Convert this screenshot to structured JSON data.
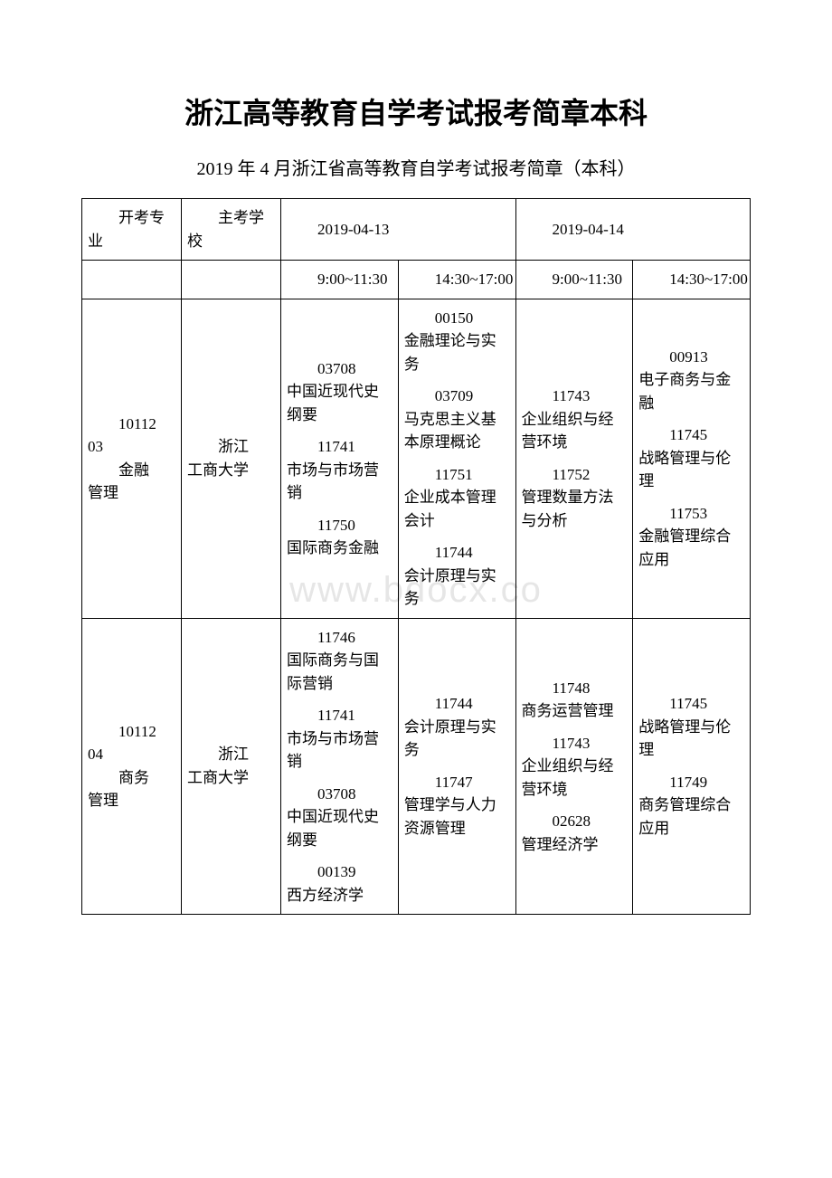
{
  "title": "浙江高等教育自学考试报考简章本科",
  "subtitle": "2019 年 4 月浙江省高等教育自学考试报考简章（本科）",
  "watermark": "www.bdocx.co",
  "table": {
    "headers": {
      "major": "开考专业",
      "school": "主考学校",
      "date1": "2019-04-13",
      "date2": "2019-04-14",
      "time1": "9:00~11:30",
      "time2": "14:30~17:00",
      "time3": "9:00~11:30",
      "time4": "14:30~17:00"
    },
    "rows": [
      {
        "major_code": "1011203",
        "major_name": "金融管理",
        "school": "浙江工商大学",
        "sessions": [
          [
            {
              "code": "03708",
              "name": "中国近现代史纲要"
            },
            {
              "code": "11741",
              "name": "市场与市场营销"
            },
            {
              "code": "11750",
              "name": "国际商务金融"
            }
          ],
          [
            {
              "code": "00150",
              "name": "金融理论与实务"
            },
            {
              "code": "03709",
              "name": "马克思主义基本原理概论"
            },
            {
              "code": "11751",
              "name": "企业成本管理会计"
            },
            {
              "code": "11744",
              "name": "会计原理与实务"
            }
          ],
          [
            {
              "code": "11743",
              "name": "企业组织与经营环境"
            },
            {
              "code": "11752",
              "name": "管理数量方法与分析"
            }
          ],
          [
            {
              "code": "00913",
              "name": "电子商务与金融"
            },
            {
              "code": "11745",
              "name": "战略管理与伦理"
            },
            {
              "code": "11753",
              "name": "金融管理综合应用"
            }
          ]
        ]
      },
      {
        "major_code": "1011204",
        "major_name": "商务管理",
        "school": "浙江工商大学",
        "sessions": [
          [
            {
              "code": "11746",
              "name": "国际商务与国际营销"
            },
            {
              "code": "11741",
              "name": "市场与市场营销"
            },
            {
              "code": "03708",
              "name": "中国近现代史纲要"
            },
            {
              "code": "00139",
              "name": "西方经济学"
            }
          ],
          [
            {
              "code": "11744",
              "name": "会计原理与实务"
            },
            {
              "code": "11747",
              "name": "管理学与人力资源管理"
            }
          ],
          [
            {
              "code": "11748",
              "name": "商务运营管理"
            },
            {
              "code": "11743",
              "name": "企业组织与经营环境"
            },
            {
              "code": "02628",
              "name": "管理经济学"
            }
          ],
          [
            {
              "code": "11745",
              "name": "战略管理与伦理"
            },
            {
              "code": "11749",
              "name": "商务管理综合应用"
            }
          ]
        ]
      }
    ]
  }
}
